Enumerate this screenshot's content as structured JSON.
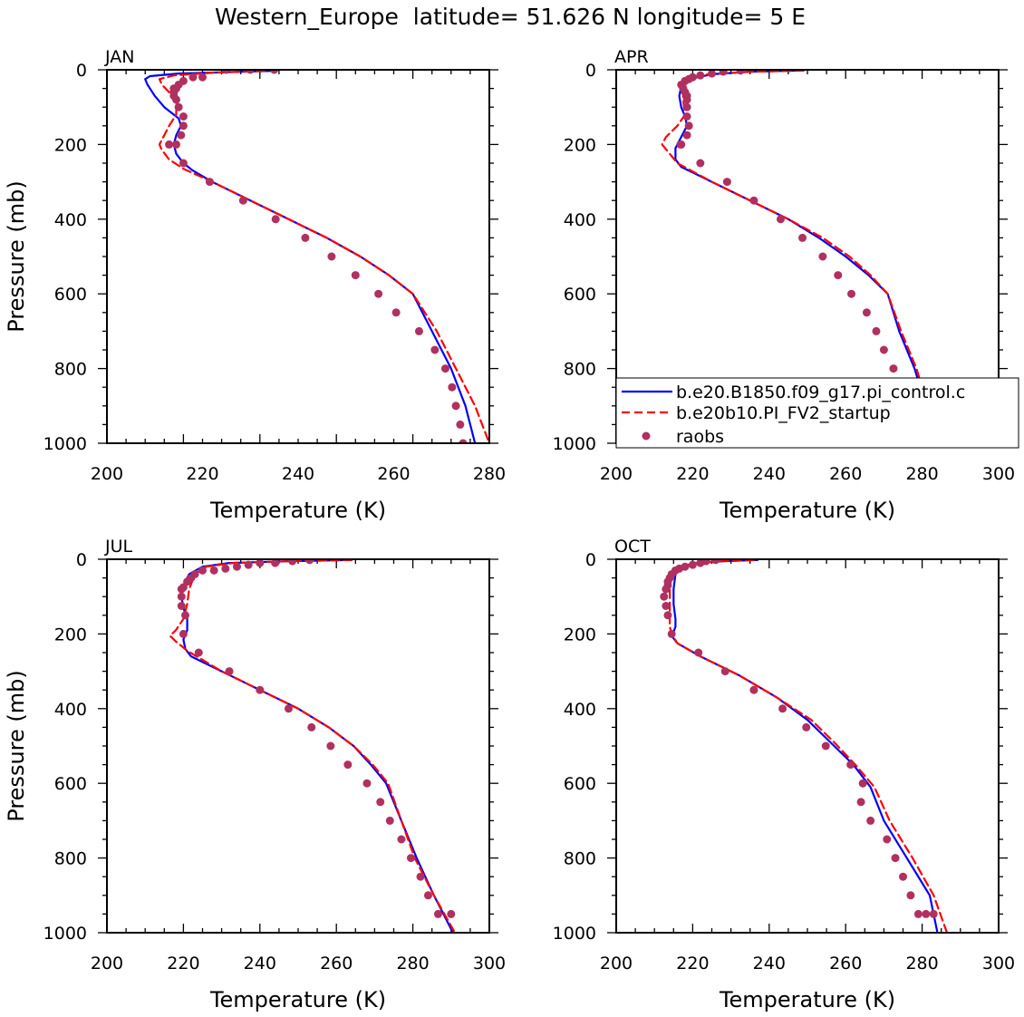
{
  "figure_title": "Western_Europe  latitude= 51.626 N longitude= 5 E",
  "legend": {
    "entries": [
      {
        "label": "b.e20.B1850.f09_g17.pi_control.c",
        "color": "#0000ff",
        "style": "solid"
      },
      {
        "label": "b.e20b10.PI_FV2_startup",
        "color": "#ff0000",
        "style": "dashed"
      },
      {
        "label": "raobs",
        "color": "#b03060",
        "style": "dot"
      }
    ]
  },
  "chart_data": [
    {
      "type": "line",
      "title": "JAN",
      "xlabel": "Temperature (K)",
      "ylabel": "Pressure (mb)",
      "xlim": [
        200,
        280
      ],
      "ylim": [
        1000,
        0
      ],
      "x_ticks": [
        200,
        220,
        240,
        260,
        280
      ],
      "y_ticks": [
        0,
        200,
        400,
        600,
        800,
        1000
      ],
      "series": [
        {
          "name": "b.e20.B1850.f09_g17.pi_control.c",
          "color": "#0000ff",
          "style": "solid",
          "x": [
            235,
            215,
            209,
            208,
            208.5,
            210,
            212,
            215,
            215.5,
            214.5,
            214,
            214.5,
            216,
            218,
            222,
            230,
            238,
            246,
            253,
            259,
            264,
            268,
            272,
            275,
            277
          ],
          "y": [
            3,
            10,
            17,
            25,
            40,
            70,
            100,
            130,
            150,
            175,
            200,
            225,
            250,
            270,
            300,
            350,
            400,
            450,
            500,
            550,
            600,
            700,
            800,
            900,
            1000
          ]
        },
        {
          "name": "b.e20b10.PI_FV2_startup",
          "color": "#ff0000",
          "style": "dashed",
          "x": [
            233,
            222,
            214,
            211,
            211.5,
            213,
            214.5,
            214.5,
            213,
            212,
            211,
            211.5,
            213,
            216,
            222,
            230,
            238,
            246,
            253,
            259,
            264,
            269,
            273,
            277,
            280
          ],
          "y": [
            3,
            8,
            15,
            25,
            40,
            60,
            90,
            120,
            150,
            175,
            200,
            215,
            240,
            265,
            300,
            350,
            400,
            450,
            500,
            550,
            600,
            700,
            800,
            900,
            1000
          ]
        },
        {
          "name": "raobs",
          "color": "#b03060",
          "style": "dot",
          "x": [
            235,
            230,
            225,
            220,
            218,
            216,
            215,
            214.5,
            214,
            214,
            214,
            214.5,
            215,
            216,
            216,
            215.5,
            214.5,
            213,
            216,
            221.5,
            228.5,
            235.3,
            241.5,
            247,
            252,
            256.8,
            260.5,
            265.3,
            268.6,
            270.8,
            272.2,
            273,
            273.9,
            274.5
          ],
          "y": [
            0,
            0,
            0,
            20,
            20,
            30,
            40,
            50,
            50,
            60,
            70,
            80,
            100,
            125,
            150,
            175,
            200,
            200,
            250,
            300,
            350,
            400,
            450,
            500,
            550,
            600,
            650,
            700,
            750,
            800,
            850,
            900,
            950,
            1000
          ]
        }
      ]
    },
    {
      "type": "line",
      "title": "APR",
      "xlabel": "Temperature (K)",
      "ylabel": "",
      "xlim": [
        200,
        300
      ],
      "ylim": [
        1000,
        0
      ],
      "x_ticks": [
        200,
        220,
        240,
        260,
        280,
        300
      ],
      "y_ticks": [
        0,
        200,
        400,
        600,
        800,
        1000
      ],
      "series": [
        {
          "name": "b.e20.B1850.f09_g17.pi_control.c",
          "color": "#0000ff",
          "style": "solid",
          "x": [
            249,
            235,
            225,
            219,
            217,
            216.5,
            217,
            218,
            218.5,
            217.5,
            216.5,
            215.5,
            215.5,
            217,
            225,
            235,
            245,
            253,
            260,
            266,
            271,
            274,
            278,
            281,
            284
          ],
          "y": [
            2,
            5,
            12,
            25,
            45,
            70,
            100,
            125,
            150,
            170,
            190,
            210,
            240,
            260,
            300,
            350,
            400,
            450,
            500,
            550,
            600,
            700,
            800,
            900,
            1000
          ]
        },
        {
          "name": "b.e20b10.PI_FV2_startup",
          "color": "#ff0000",
          "style": "dashed",
          "x": [
            249,
            235,
            224,
            219,
            217.5,
            217.5,
            218,
            216,
            213,
            212,
            214,
            216,
            225,
            235,
            245,
            254,
            261,
            266.5,
            271,
            274.5,
            278.5,
            281.5,
            284.5
          ],
          "y": [
            2,
            5,
            12,
            25,
            50,
            80,
            120,
            150,
            180,
            200,
            225,
            250,
            300,
            350,
            400,
            450,
            500,
            550,
            600,
            700,
            800,
            900,
            1000
          ]
        },
        {
          "name": "raobs",
          "color": "#b03060",
          "style": "dot",
          "x": [
            232.5,
            228,
            225,
            222,
            220,
            219,
            218,
            217,
            217.5,
            218,
            218.5,
            218.5,
            218.5,
            218.5,
            219,
            218.5,
            217,
            216.8,
            222,
            229,
            236,
            243,
            248.7,
            254,
            258,
            261.5,
            265.5,
            268,
            270,
            272.5,
            275,
            277.8,
            280.8
          ],
          "y": [
            2,
            5,
            10,
            15,
            20,
            25,
            30,
            40,
            50,
            60,
            70,
            80,
            100,
            125,
            150,
            175,
            200,
            200,
            250,
            300,
            350,
            400,
            450,
            500,
            550,
            600,
            650,
            700,
            750,
            800,
            850,
            900,
            950
          ]
        }
      ]
    },
    {
      "type": "line",
      "title": "JUL",
      "xlabel": "Temperature (K)",
      "ylabel": "Pressure (mb)",
      "xlim": [
        200,
        300
      ],
      "ylim": [
        1000,
        0
      ],
      "x_ticks": [
        200,
        220,
        240,
        260,
        280,
        300
      ],
      "y_ticks": [
        0,
        200,
        400,
        600,
        800,
        1000
      ],
      "series": [
        {
          "name": "b.e20.B1850.f09_g17.pi_control.c",
          "color": "#0000ff",
          "style": "solid",
          "x": [
            264,
            248,
            232,
            225,
            221.5,
            220,
            219.5,
            220,
            221,
            221,
            220,
            220.5,
            222,
            230,
            240,
            250,
            258,
            264.5,
            269,
            273,
            277,
            281,
            285.5,
            290.5
          ],
          "y": [
            2,
            5,
            10,
            20,
            40,
            70,
            100,
            130,
            160,
            190,
            215,
            240,
            260,
            300,
            350,
            400,
            450,
            500,
            550,
            600,
            700,
            800,
            900,
            1000
          ]
        },
        {
          "name": "b.e20b10.PI_FV2_startup",
          "color": "#ff0000",
          "style": "dashed",
          "x": [
            264,
            248,
            233,
            226,
            223,
            221.5,
            221,
            220,
            218,
            216.5,
            218,
            221,
            230,
            240,
            250,
            258,
            264.5,
            269.5,
            273.5,
            277,
            280.5,
            285.5,
            291
          ],
          "y": [
            2,
            5,
            10,
            20,
            40,
            80,
            120,
            160,
            190,
            205,
            220,
            245,
            300,
            350,
            400,
            450,
            500,
            550,
            600,
            700,
            800,
            900,
            1000
          ]
        },
        {
          "name": "raobs",
          "color": "#b03060",
          "style": "dot",
          "x": [
            253,
            248.5,
            244,
            240,
            237,
            234,
            231,
            228,
            225,
            223,
            222,
            221,
            220,
            219.5,
            219.5,
            219.5,
            220.5,
            220,
            224,
            232,
            240,
            247.5,
            253.5,
            258.5,
            263,
            268,
            271.5,
            274,
            277,
            279.5,
            282,
            284,
            286.6,
            290
          ],
          "y": [
            2,
            5,
            10,
            10,
            15,
            20,
            25,
            30,
            30,
            40,
            50,
            60,
            75,
            80,
            100,
            125,
            150,
            200,
            250,
            300,
            350,
            400,
            450,
            500,
            550,
            600,
            650,
            700,
            750,
            800,
            850,
            900,
            950,
            950
          ]
        }
      ]
    },
    {
      "type": "line",
      "title": "OCT",
      "xlabel": "Temperature (K)",
      "ylabel": "",
      "xlim": [
        200,
        300
      ],
      "ylim": [
        1000,
        0
      ],
      "x_ticks": [
        200,
        220,
        240,
        260,
        280,
        300
      ],
      "y_ticks": [
        0,
        200,
        400,
        600,
        800,
        1000
      ],
      "series": [
        {
          "name": "b.e20.B1850.f09_g17.pi_control.c",
          "color": "#0000ff",
          "style": "solid",
          "x": [
            237,
            228,
            221,
            217,
            215.5,
            215,
            215,
            215.5,
            215.5,
            215,
            214.5,
            216,
            222,
            232,
            242,
            250,
            256,
            262,
            266.5,
            270,
            276,
            282,
            284
          ],
          "y": [
            2,
            5,
            10,
            20,
            40,
            80,
            120,
            160,
            180,
            195,
            205,
            225,
            260,
            310,
            370,
            430,
            490,
            550,
            610,
            700,
            800,
            900,
            1000
          ]
        },
        {
          "name": "b.e20b10.PI_FV2_startup",
          "color": "#ff0000",
          "style": "dashed",
          "x": [
            236,
            228,
            221,
            216.5,
            214.5,
            214,
            214,
            214,
            214,
            214.5,
            216,
            222,
            232,
            242,
            251,
            257,
            262.5,
            267.5,
            271.5,
            277.5,
            283,
            286.5
          ],
          "y": [
            2,
            5,
            10,
            20,
            40,
            80,
            120,
            160,
            180,
            200,
            225,
            260,
            310,
            370,
            430,
            490,
            550,
            610,
            700,
            800,
            900,
            1000
          ]
        },
        {
          "name": "raobs",
          "color": "#b03060",
          "style": "dot",
          "x": [
            226,
            223.5,
            222,
            220,
            218,
            216.5,
            215.5,
            214.5,
            214,
            213.5,
            213.5,
            213,
            212.5,
            213,
            213.5,
            214.5,
            221.5,
            228.5,
            236,
            243.5,
            249.7,
            254.8,
            261.3,
            264.5,
            264,
            266.5,
            270.8,
            273,
            275,
            277,
            279,
            281,
            283
          ],
          "y": [
            2,
            5,
            10,
            15,
            20,
            25,
            30,
            40,
            50,
            60,
            70,
            80,
            100,
            125,
            150,
            200,
            250,
            300,
            350,
            400,
            450,
            500,
            550,
            600,
            650,
            700,
            750,
            800,
            850,
            900,
            950,
            950,
            950
          ]
        }
      ]
    }
  ]
}
